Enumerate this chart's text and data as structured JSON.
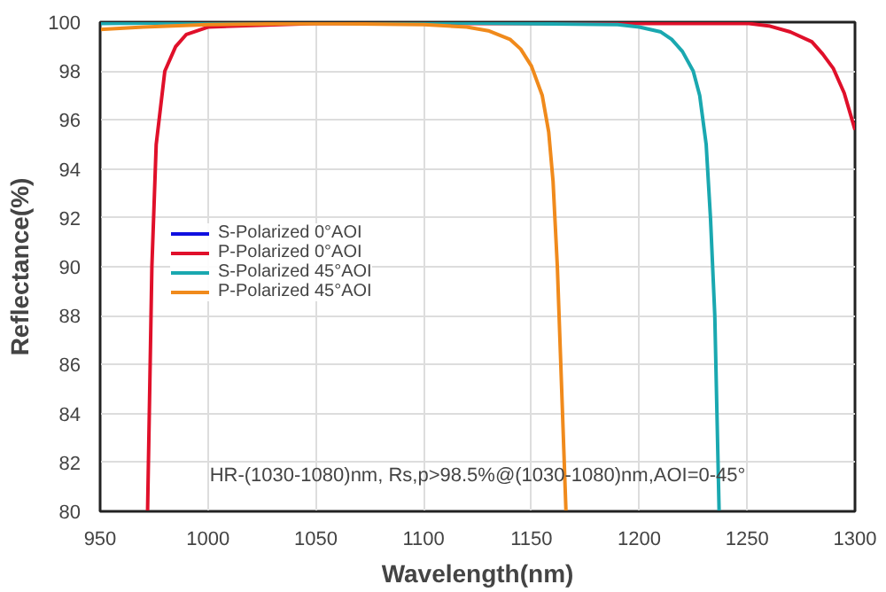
{
  "chart_data": {
    "type": "line",
    "xlabel": "Wavelength(nm)",
    "ylabel": "Reflectance(%)",
    "xlim": [
      950,
      1300
    ],
    "ylim": [
      80,
      100
    ],
    "xticks": [
      950,
      1000,
      1050,
      1100,
      1150,
      1200,
      1250,
      1300
    ],
    "yticks": [
      80,
      82,
      84,
      86,
      88,
      90,
      92,
      94,
      96,
      98,
      100
    ],
    "grid": true,
    "legend": "left",
    "marker": "none",
    "line_style": "solid",
    "annotations": [
      "HR-(1030-1080)nm, Rs,p>98.5%@(1030-1080)nm,AOI=0-45°"
    ],
    "series": [
      {
        "name": "S-Polarized 0°AOI",
        "color": "#1010e0"
      },
      {
        "name": "P-Polarized 0°AOI",
        "color": "#e0102a",
        "x": [
          972,
          974,
          976,
          980,
          985,
          990,
          1000,
          1050,
          1250,
          1260,
          1270,
          1280,
          1285,
          1290,
          1295,
          1300
        ],
        "values": [
          80,
          90,
          95,
          98,
          99,
          99.5,
          99.8,
          99.95,
          99.95,
          99.85,
          99.6,
          99.2,
          98.7,
          98.1,
          97.1,
          95.6
        ]
      },
      {
        "name": "S-Polarized 45°AOI",
        "color": "#1aa8b0",
        "x": [
          950,
          1000,
          1100,
          1190,
          1200,
          1210,
          1215,
          1220,
          1225,
          1228,
          1231,
          1233,
          1235,
          1236,
          1237
        ],
        "values": [
          99.95,
          99.98,
          99.98,
          99.9,
          99.8,
          99.6,
          99.3,
          98.8,
          98,
          97,
          95,
          92,
          88,
          84,
          80
        ]
      },
      {
        "name": "P-Polarized 45°AOI",
        "color": "#f08a1c",
        "x": [
          950,
          970,
          1000,
          1050,
          1100,
          1120,
          1130,
          1140,
          1145,
          1150,
          1155,
          1158,
          1160,
          1162,
          1164,
          1166
        ],
        "values": [
          99.7,
          99.8,
          99.9,
          99.95,
          99.9,
          99.8,
          99.65,
          99.3,
          98.9,
          98.2,
          97,
          95.5,
          93.5,
          90,
          85,
          80
        ]
      }
    ]
  }
}
